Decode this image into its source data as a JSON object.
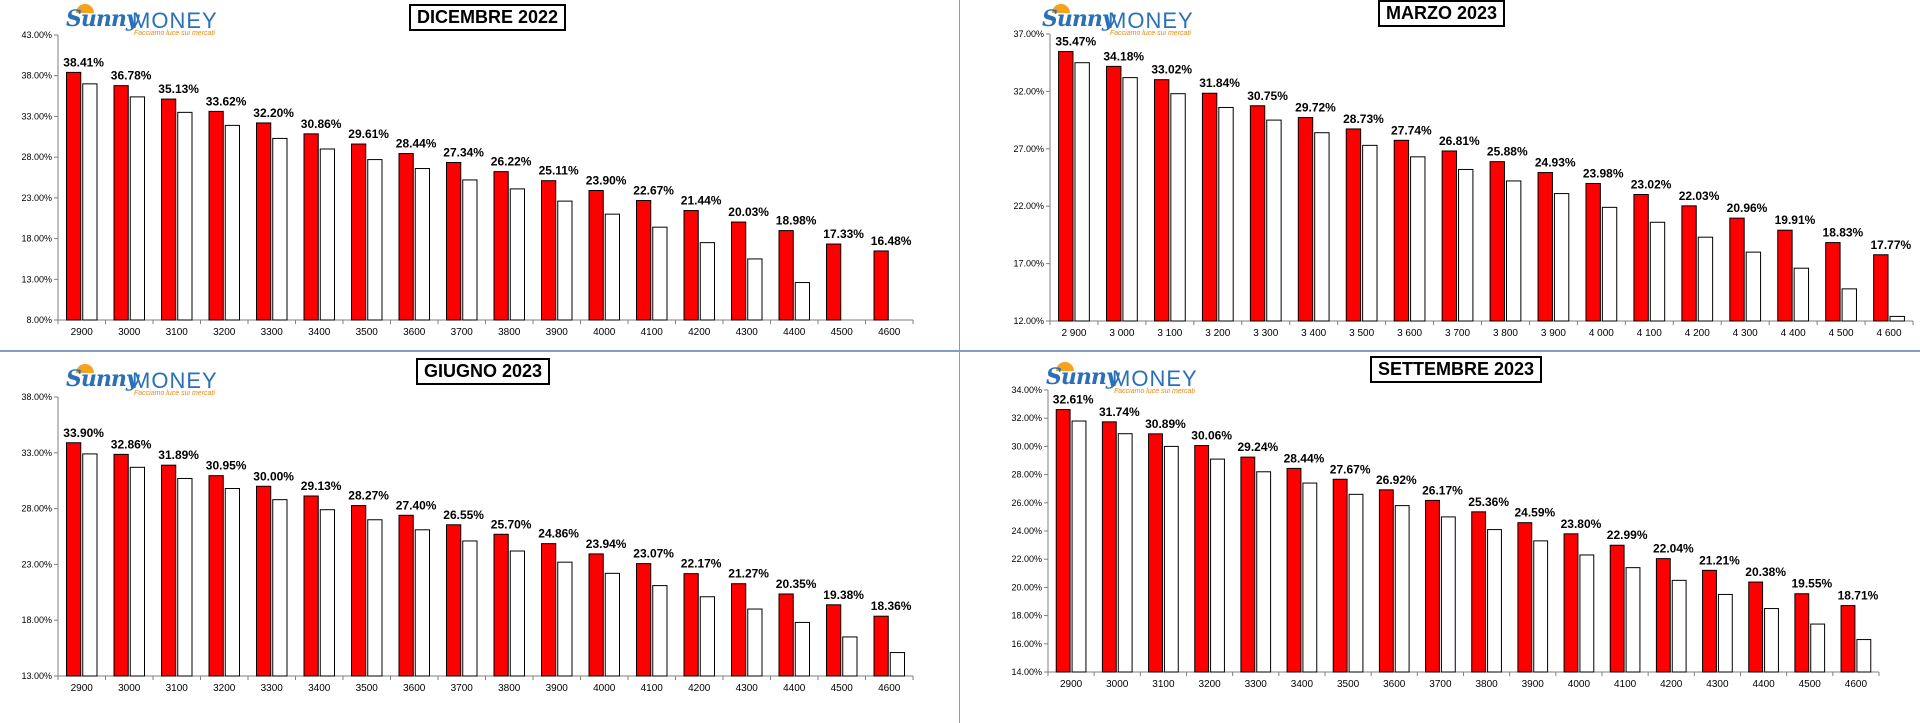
{
  "logo": {
    "brand_a": "Sunny",
    "brand_b": "MONEY",
    "tagline": "Facciamo luce sui mercati"
  },
  "colors": {
    "red": "#ff0000",
    "white": "#ffffff",
    "outline": "#000000",
    "axis": "#7f7f7f"
  },
  "chart_data": [
    {
      "type": "bar",
      "title": "DICEMBRE 2022",
      "categories": [
        "2900",
        "3000",
        "3100",
        "3200",
        "3300",
        "3400",
        "3500",
        "3600",
        "3700",
        "3800",
        "3900",
        "4000",
        "4100",
        "4200",
        "4300",
        "4400",
        "4500",
        "4600"
      ],
      "yticks": [
        "8.00%",
        "13.00%",
        "18.00%",
        "23.00%",
        "28.00%",
        "33.00%",
        "38.00%",
        "43.00%"
      ],
      "ylim": [
        8,
        43
      ],
      "series": [
        {
          "color": "#ff0000",
          "values": [
            38.41,
            36.78,
            35.13,
            33.62,
            32.2,
            30.86,
            29.61,
            28.44,
            27.34,
            26.22,
            25.11,
            23.9,
            22.67,
            21.44,
            20.03,
            18.98,
            17.33,
            16.48
          ],
          "labels": [
            "38.41%",
            "36.78%",
            "35.13%",
            "33.62%",
            "32.20%",
            "30.86%",
            "29.61%",
            "28.44%",
            "27.34%",
            "26.22%",
            "25.11%",
            "23.90%",
            "22.67%",
            "21.44%",
            "20.03%",
            "18.98%",
            "17.33%",
            "16.48%"
          ]
        },
        {
          "color": "#ffffff",
          "values": [
            37.0,
            35.4,
            33.5,
            31.9,
            30.3,
            29.0,
            27.7,
            26.6,
            25.2,
            24.1,
            22.6,
            21.0,
            19.4,
            17.5,
            15.5,
            12.6,
            null,
            null
          ]
        }
      ]
    },
    {
      "type": "bar",
      "title": "MARZO 2023",
      "categories": [
        "2 900",
        "3 000",
        "3 100",
        "3 200",
        "3 300",
        "3 400",
        "3 500",
        "3 600",
        "3 700",
        "3 800",
        "3 900",
        "4 000",
        "4 100",
        "4 200",
        "4 300",
        "4 400",
        "4 500",
        "4 600"
      ],
      "yticks": [
        "12.00%",
        "17.00%",
        "22.00%",
        "27.00%",
        "32.00%",
        "37.00%"
      ],
      "ylim": [
        12,
        37
      ],
      "series": [
        {
          "color": "#ff0000",
          "values": [
            35.47,
            34.18,
            33.02,
            31.84,
            30.75,
            29.72,
            28.73,
            27.74,
            26.81,
            25.88,
            24.93,
            23.98,
            23.02,
            22.03,
            20.96,
            19.91,
            18.83,
            17.77
          ],
          "labels": [
            "35.47%",
            "34.18%",
            "33.02%",
            "31.84%",
            "30.75%",
            "29.72%",
            "28.73%",
            "27.74%",
            "26.81%",
            "25.88%",
            "24.93%",
            "23.98%",
            "23.02%",
            "22.03%",
            "20.96%",
            "19.91%",
            "18.83%",
            "17.77%"
          ]
        },
        {
          "color": "#ffffff",
          "values": [
            34.5,
            33.2,
            31.8,
            30.6,
            29.5,
            28.4,
            27.3,
            26.3,
            25.2,
            24.2,
            23.1,
            21.9,
            20.6,
            19.3,
            18.0,
            16.6,
            14.8,
            12.4
          ]
        }
      ]
    },
    {
      "type": "bar",
      "title": "GIUGNO 2023",
      "categories": [
        "2900",
        "3000",
        "3100",
        "3200",
        "3300",
        "3400",
        "3500",
        "3600",
        "3700",
        "3800",
        "3900",
        "4000",
        "4100",
        "4200",
        "4300",
        "4400",
        "4500",
        "4600"
      ],
      "yticks": [
        "13.00%",
        "18.00%",
        "23.00%",
        "28.00%",
        "33.00%",
        "38.00%"
      ],
      "ylim": [
        13,
        38
      ],
      "series": [
        {
          "color": "#ff0000",
          "values": [
            33.9,
            32.86,
            31.89,
            30.95,
            30.0,
            29.13,
            28.27,
            27.4,
            26.55,
            25.7,
            24.86,
            23.94,
            23.07,
            22.17,
            21.27,
            20.35,
            19.38,
            18.36
          ],
          "labels": [
            "33.90%",
            "32.86%",
            "31.89%",
            "30.95%",
            "30.00%",
            "29.13%",
            "28.27%",
            "27.40%",
            "26.55%",
            "25.70%",
            "24.86%",
            "23.94%",
            "23.07%",
            "22.17%",
            "21.27%",
            "20.35%",
            "19.38%",
            "18.36%"
          ]
        },
        {
          "color": "#ffffff",
          "values": [
            32.9,
            31.7,
            30.7,
            29.8,
            28.8,
            27.9,
            27.0,
            26.1,
            25.1,
            24.2,
            23.2,
            22.2,
            21.1,
            20.1,
            19.0,
            17.8,
            16.5,
            15.1
          ]
        }
      ]
    },
    {
      "type": "bar",
      "title": "SETTEMBRE 2023",
      "categories": [
        "2900",
        "3000",
        "3100",
        "3200",
        "3300",
        "3400",
        "3500",
        "3600",
        "3700",
        "3800",
        "3900",
        "4000",
        "4100",
        "4200",
        "4300",
        "4400",
        "4500",
        "4600"
      ],
      "yticks": [
        "14.00%",
        "16.00%",
        "18.00%",
        "20.00%",
        "22.00%",
        "24.00%",
        "26.00%",
        "28.00%",
        "30.00%",
        "32.00%",
        "34.00%"
      ],
      "ylim": [
        14,
        34
      ],
      "series": [
        {
          "color": "#ff0000",
          "values": [
            32.61,
            31.74,
            30.89,
            30.06,
            29.24,
            28.44,
            27.67,
            26.92,
            26.17,
            25.36,
            24.59,
            23.8,
            22.99,
            22.04,
            21.21,
            20.38,
            19.55,
            18.71
          ],
          "labels": [
            "32.61%",
            "31.74%",
            "30.89%",
            "30.06%",
            "29.24%",
            "28.44%",
            "27.67%",
            "26.92%",
            "26.17%",
            "25.36%",
            "24.59%",
            "23.80%",
            "22.99%",
            "22.04%",
            "21.21%",
            "20.38%",
            "19.55%",
            "18.71%"
          ]
        },
        {
          "color": "#ffffff",
          "values": [
            31.8,
            30.9,
            30.0,
            29.1,
            28.2,
            27.4,
            26.6,
            25.8,
            25.0,
            24.1,
            23.3,
            22.3,
            21.4,
            20.5,
            19.5,
            18.5,
            17.4,
            16.3
          ]
        }
      ]
    }
  ]
}
